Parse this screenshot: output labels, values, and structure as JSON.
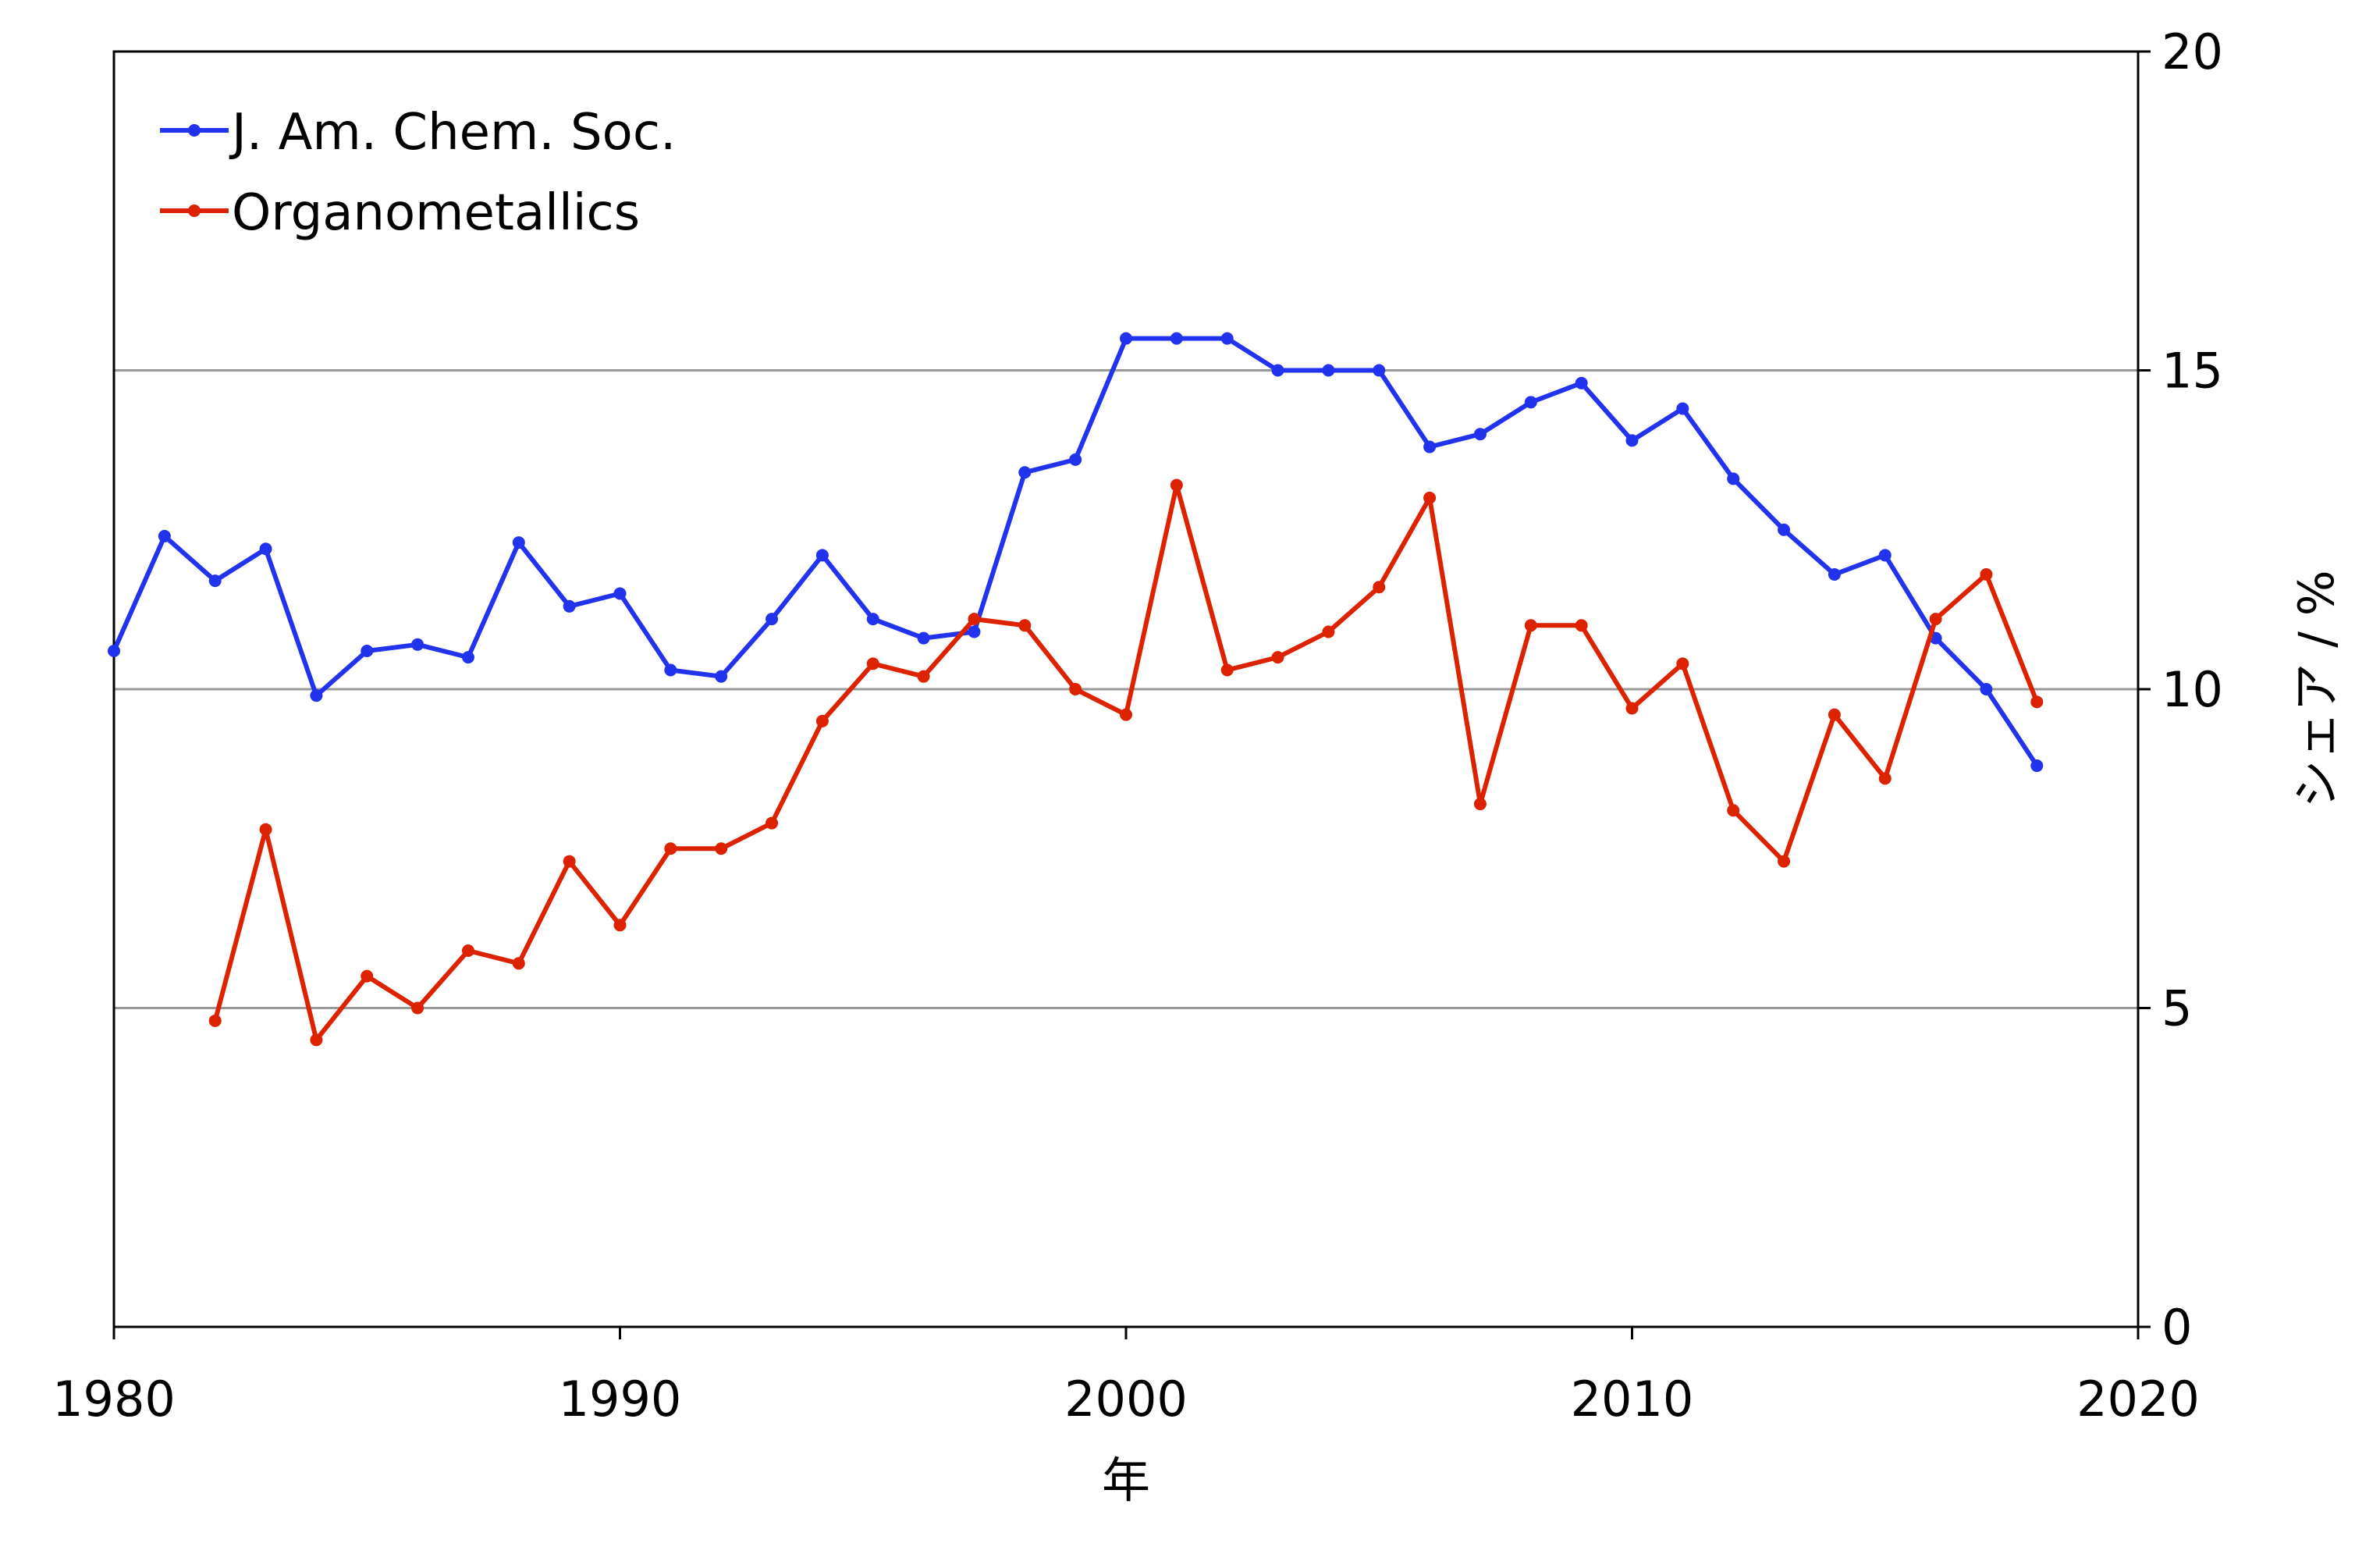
{
  "chart_data": {
    "type": "line",
    "xlabel": "年",
    "ylabel": "シェア / %",
    "xlim": [
      1980,
      2020
    ],
    "ylim": [
      0,
      20
    ],
    "x_ticks": [
      "1980",
      "1990",
      "2000",
      "2010",
      "2020"
    ],
    "y_ticks": [
      "0",
      "5",
      "10",
      "15",
      "20"
    ],
    "y_axis_side": "right",
    "grid": "horizontal",
    "legend_position": "top-left",
    "series": [
      {
        "name": "J. Am. Chem. Soc.",
        "color": "#2233ee",
        "x": [
          1980,
          1981,
          1982,
          1983,
          1984,
          1985,
          1986,
          1987,
          1988,
          1989,
          1990,
          1991,
          1992,
          1993,
          1994,
          1995,
          1996,
          1997,
          1998,
          1999,
          2000,
          2001,
          2002,
          2003,
          2004,
          2005,
          2006,
          2007,
          2008,
          2009,
          2010,
          2011,
          2012,
          2013,
          2014,
          2015,
          2016,
          2017,
          2018
        ],
        "values": [
          10.6,
          12.4,
          11.7,
          12.2,
          9.9,
          10.6,
          10.7,
          10.5,
          12.3,
          11.3,
          11.5,
          10.3,
          10.2,
          11.1,
          12.1,
          11.1,
          10.8,
          10.9,
          13.4,
          13.6,
          15.5,
          15.5,
          15.5,
          15.0,
          15.0,
          15.0,
          13.8,
          14.0,
          14.5,
          14.8,
          13.9,
          14.4,
          13.3,
          12.5,
          11.8,
          12.1,
          10.8,
          10.0,
          8.8
        ]
      },
      {
        "name": "Organometallics",
        "color": "#dd2200",
        "x": [
          1982,
          1983,
          1984,
          1985,
          1986,
          1987,
          1988,
          1989,
          1990,
          1991,
          1992,
          1993,
          1994,
          1995,
          1996,
          1997,
          1998,
          1999,
          2000,
          2001,
          2002,
          2003,
          2004,
          2005,
          2006,
          2007,
          2008,
          2009,
          2010,
          2011,
          2012,
          2013,
          2014,
          2015,
          2016,
          2017,
          2018
        ],
        "values": [
          4.8,
          7.8,
          4.5,
          5.5,
          5.0,
          5.9,
          5.7,
          7.3,
          6.3,
          7.5,
          7.5,
          7.9,
          9.5,
          10.4,
          10.2,
          11.1,
          11.0,
          10.0,
          9.6,
          13.2,
          10.3,
          10.5,
          10.9,
          11.6,
          13.0,
          8.2,
          11.0,
          11.0,
          9.7,
          10.4,
          8.1,
          7.3,
          9.6,
          8.6,
          11.1,
          11.8,
          9.8
        ]
      }
    ]
  }
}
